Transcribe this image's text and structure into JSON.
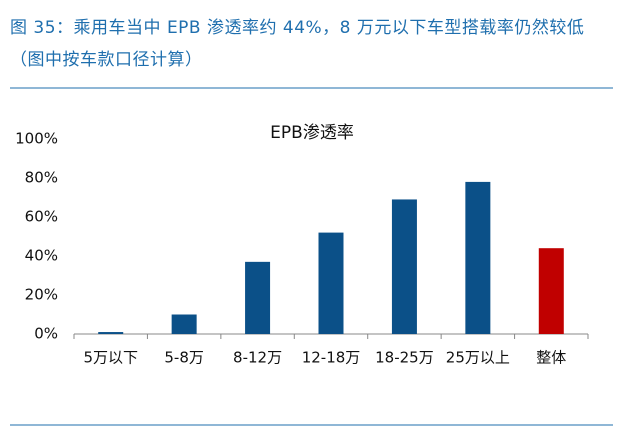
{
  "header": {
    "title": "图 35：乘用车当中 EPB 渗透率约 44%，8 万元以下车型搭载率仍然较低（图中按车款口径计算）"
  },
  "chart_data": {
    "type": "bar",
    "title": "EPB渗透率",
    "categories": [
      "5万以下",
      "5-8万",
      "8-12万",
      "12-18万",
      "18-25万",
      "25万以上",
      "整体"
    ],
    "values": [
      1,
      10,
      37,
      52,
      69,
      78,
      44
    ],
    "colors": [
      "#0b5088",
      "#0b5088",
      "#0b5088",
      "#0b5088",
      "#0b5088",
      "#0b5088",
      "#c00000"
    ],
    "ylim": [
      0,
      100
    ],
    "yticks": [
      {
        "value": 0,
        "label": "0%"
      },
      {
        "value": 20,
        "label": "20%"
      },
      {
        "value": 40,
        "label": "40%"
      },
      {
        "value": 60,
        "label": "60%"
      },
      {
        "value": 80,
        "label": "80%"
      },
      {
        "value": 100,
        "label": "100%"
      }
    ],
    "grid": false
  }
}
